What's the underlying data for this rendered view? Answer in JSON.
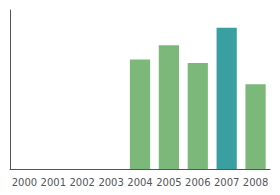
{
  "chart_data": {
    "type": "bar",
    "categories": [
      "2000",
      "2001",
      "2002",
      "2003",
      "2004",
      "2005",
      "2006",
      "2007",
      "2008"
    ],
    "values": [
      0,
      0,
      0,
      0,
      62,
      70,
      60,
      80,
      48
    ],
    "colors": [
      "#7cb87a",
      "#7cb87a",
      "#7cb87a",
      "#7cb87a",
      "#7cb87a",
      "#7cb87a",
      "#7cb87a",
      "#3a9fa0",
      "#7cb87a"
    ],
    "ylim": [
      0,
      90
    ],
    "grid": false,
    "tick_labels": "x"
  }
}
